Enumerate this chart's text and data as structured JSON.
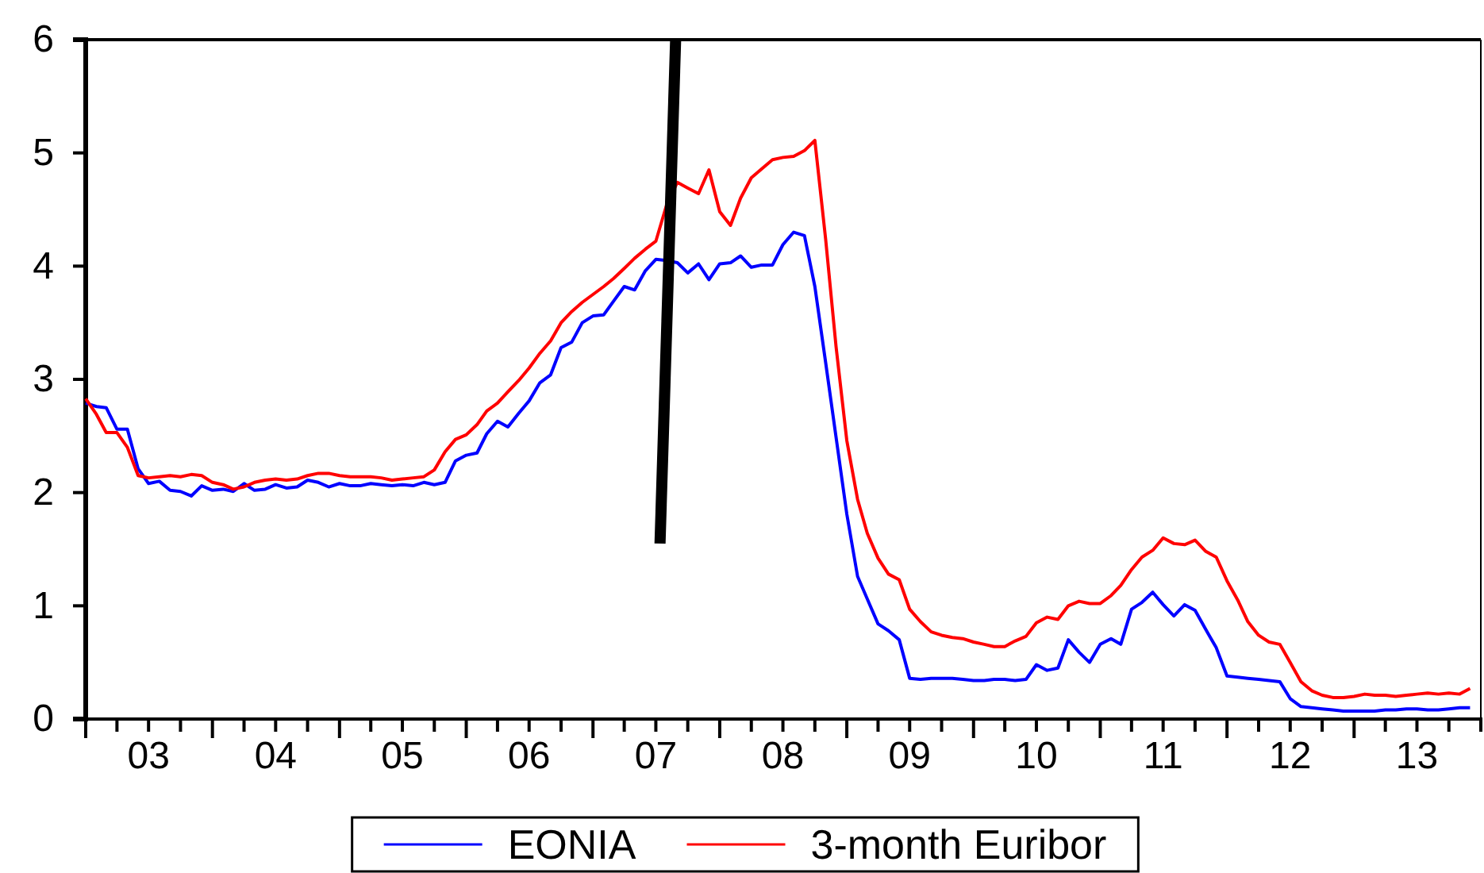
{
  "chart_data": {
    "type": "line",
    "x": [
      "2003-01",
      "2003-02",
      "2003-03",
      "2003-04",
      "2003-05",
      "2003-06",
      "2003-07",
      "2003-08",
      "2003-09",
      "2003-10",
      "2003-11",
      "2003-12",
      "2004-01",
      "2004-02",
      "2004-03",
      "2004-04",
      "2004-05",
      "2004-06",
      "2004-07",
      "2004-08",
      "2004-09",
      "2004-10",
      "2004-11",
      "2004-12",
      "2005-01",
      "2005-02",
      "2005-03",
      "2005-04",
      "2005-05",
      "2005-06",
      "2005-07",
      "2005-08",
      "2005-09",
      "2005-10",
      "2005-11",
      "2005-12",
      "2006-01",
      "2006-02",
      "2006-03",
      "2006-04",
      "2006-05",
      "2006-06",
      "2006-07",
      "2006-08",
      "2006-09",
      "2006-10",
      "2006-11",
      "2006-12",
      "2007-01",
      "2007-02",
      "2007-03",
      "2007-04",
      "2007-05",
      "2007-06",
      "2007-07",
      "2007-08",
      "2007-09",
      "2007-10",
      "2007-11",
      "2007-12",
      "2008-01",
      "2008-02",
      "2008-03",
      "2008-04",
      "2008-05",
      "2008-06",
      "2008-07",
      "2008-08",
      "2008-09",
      "2008-10",
      "2008-11",
      "2008-12",
      "2009-01",
      "2009-02",
      "2009-03",
      "2009-04",
      "2009-05",
      "2009-06",
      "2009-07",
      "2009-08",
      "2009-09",
      "2009-10",
      "2009-11",
      "2009-12",
      "2010-01",
      "2010-02",
      "2010-03",
      "2010-04",
      "2010-05",
      "2010-06",
      "2010-07",
      "2010-08",
      "2010-09",
      "2010-10",
      "2010-11",
      "2010-12",
      "2011-01",
      "2011-02",
      "2011-03",
      "2011-04",
      "2011-05",
      "2011-06",
      "2011-07",
      "2011-08",
      "2011-09",
      "2011-10",
      "2011-11",
      "2011-12",
      "2012-01",
      "2012-02",
      "2012-03",
      "2012-04",
      "2012-05",
      "2012-06",
      "2012-07",
      "2012-08",
      "2012-09",
      "2012-10",
      "2012-11",
      "2012-12",
      "2013-01",
      "2013-02",
      "2013-03",
      "2013-04",
      "2013-05",
      "2013-06",
      "2013-07",
      "2013-08",
      "2013-09",
      "2013-10",
      "2013-11",
      "2013-12"
    ],
    "series": [
      {
        "name": "EONIA",
        "color": "#0000ff",
        "values": [
          2.79,
          2.76,
          2.75,
          2.56,
          2.56,
          2.21,
          2.08,
          2.1,
          2.02,
          2.01,
          1.97,
          2.06,
          2.02,
          2.03,
          2.01,
          2.08,
          2.02,
          2.03,
          2.07,
          2.04,
          2.05,
          2.11,
          2.09,
          2.05,
          2.08,
          2.06,
          2.06,
          2.08,
          2.07,
          2.06,
          2.07,
          2.06,
          2.09,
          2.07,
          2.09,
          2.28,
          2.33,
          2.35,
          2.52,
          2.63,
          2.58,
          2.7,
          2.81,
          2.97,
          3.04,
          3.28,
          3.33,
          3.5,
          3.56,
          3.57,
          3.69,
          3.82,
          3.79,
          3.96,
          4.06,
          4.05,
          4.03,
          3.94,
          4.02,
          3.88,
          4.02,
          4.03,
          4.09,
          3.99,
          4.01,
          4.01,
          4.19,
          4.3,
          4.27,
          3.82,
          3.15,
          2.49,
          1.81,
          1.26,
          1.06,
          0.84,
          0.78,
          0.7,
          0.36,
          0.35,
          0.36,
          0.36,
          0.36,
          0.35,
          0.34,
          0.34,
          0.35,
          0.35,
          0.34,
          0.35,
          0.48,
          0.43,
          0.45,
          0.7,
          0.59,
          0.5,
          0.66,
          0.71,
          0.66,
          0.97,
          1.03,
          1.12,
          1.01,
          0.91,
          1.01,
          0.96,
          0.79,
          0.63,
          0.38,
          0.37,
          0.36,
          0.35,
          0.34,
          0.33,
          0.18,
          0.11,
          0.1,
          0.09,
          0.08,
          0.07,
          0.07,
          0.07,
          0.07,
          0.08,
          0.08,
          0.09,
          0.09,
          0.08,
          0.08,
          0.09,
          0.1,
          0.1
        ]
      },
      {
        "name": "3-month Euribor",
        "color": "#ff0000",
        "values": [
          2.83,
          2.69,
          2.53,
          2.53,
          2.4,
          2.15,
          2.13,
          2.14,
          2.15,
          2.14,
          2.16,
          2.15,
          2.09,
          2.07,
          2.03,
          2.05,
          2.09,
          2.11,
          2.12,
          2.11,
          2.12,
          2.15,
          2.17,
          2.17,
          2.15,
          2.14,
          2.14,
          2.14,
          2.13,
          2.11,
          2.12,
          2.13,
          2.14,
          2.2,
          2.36,
          2.47,
          2.51,
          2.6,
          2.72,
          2.79,
          2.89,
          2.99,
          3.1,
          3.23,
          3.34,
          3.5,
          3.6,
          3.68,
          3.75,
          3.82,
          3.89,
          3.98,
          4.07,
          4.15,
          4.22,
          4.54,
          4.74,
          4.69,
          4.64,
          4.85,
          4.48,
          4.36,
          4.6,
          4.78,
          4.86,
          4.94,
          4.96,
          4.97,
          5.02,
          5.11,
          4.24,
          3.29,
          2.46,
          1.94,
          1.64,
          1.42,
          1.28,
          1.23,
          0.97,
          0.86,
          0.77,
          0.74,
          0.72,
          0.71,
          0.68,
          0.66,
          0.64,
          0.64,
          0.69,
          0.73,
          0.85,
          0.9,
          0.88,
          1.0,
          1.04,
          1.02,
          1.02,
          1.09,
          1.18,
          1.32,
          1.43,
          1.49,
          1.6,
          1.55,
          1.54,
          1.58,
          1.48,
          1.43,
          1.22,
          1.05,
          0.86,
          0.74,
          0.68,
          0.66,
          0.5,
          0.33,
          0.25,
          0.21,
          0.19,
          0.19,
          0.2,
          0.22,
          0.21,
          0.21,
          0.2,
          0.21,
          0.22,
          0.23,
          0.22,
          0.23,
          0.22,
          0.27
        ]
      },
      {
        "color": "#000000",
        "x": [
          "2007-07-13",
          "2007-08-27"
        ],
        "values": [
          1.55,
          6
        ]
      }
    ],
    "xlim": [
      "2003-01",
      "2014-01"
    ],
    "xticks": [
      {
        "value": "2003-01",
        "label": null
      },
      {
        "value": "2003-04",
        "label": null
      },
      {
        "value": "2003-07",
        "label": "03"
      },
      {
        "value": "2003-10",
        "label": null
      },
      {
        "value": "2004-01",
        "label": null
      },
      {
        "value": "2004-04",
        "label": null
      },
      {
        "value": "2004-07",
        "label": "04"
      },
      {
        "value": "2004-10",
        "label": null
      },
      {
        "value": "2005-01",
        "label": null
      },
      {
        "value": "2005-04",
        "label": null
      },
      {
        "value": "2005-07",
        "label": "05"
      },
      {
        "value": "2005-10",
        "label": null
      },
      {
        "value": "2006-01",
        "label": null
      },
      {
        "value": "2006-04",
        "label": null
      },
      {
        "value": "2006-07",
        "label": "06"
      },
      {
        "value": "2006-10",
        "label": null
      },
      {
        "value": "2007-01",
        "label": null
      },
      {
        "value": "2007-04",
        "label": null
      },
      {
        "value": "2007-07",
        "label": "07"
      },
      {
        "value": "2007-10",
        "label": null
      },
      {
        "value": "2008-01",
        "label": null
      },
      {
        "value": "2008-04",
        "label": null
      },
      {
        "value": "2008-07",
        "label": "08"
      },
      {
        "value": "2008-10",
        "label": null
      },
      {
        "value": "2009-01",
        "label": null
      },
      {
        "value": "2009-04",
        "label": null
      },
      {
        "value": "2009-07",
        "label": "09"
      },
      {
        "value": "2009-10",
        "label": null
      },
      {
        "value": "2010-01",
        "label": null
      },
      {
        "value": "2010-04",
        "label": null
      },
      {
        "value": "2010-07",
        "label": "10"
      },
      {
        "value": "2010-10",
        "label": null
      },
      {
        "value": "2011-01",
        "label": null
      },
      {
        "value": "2011-04",
        "label": null
      },
      {
        "value": "2011-07",
        "label": "11"
      },
      {
        "value": "2011-10",
        "label": null
      },
      {
        "value": "2012-01",
        "label": null
      },
      {
        "value": "2012-04",
        "label": null
      },
      {
        "value": "2012-07",
        "label": "12"
      },
      {
        "value": "2012-10",
        "label": null
      },
      {
        "value": "2013-01",
        "label": null
      },
      {
        "value": "2013-04",
        "label": null
      },
      {
        "value": "2013-07",
        "label": "13"
      },
      {
        "value": "2013-10",
        "label": null
      }
    ],
    "ylim": [
      0,
      6
    ],
    "yticks": [
      0,
      1,
      2,
      3,
      4,
      5,
      6
    ],
    "grid": false,
    "legend": "bottom",
    "line_style": "solid",
    "marker": "none"
  }
}
